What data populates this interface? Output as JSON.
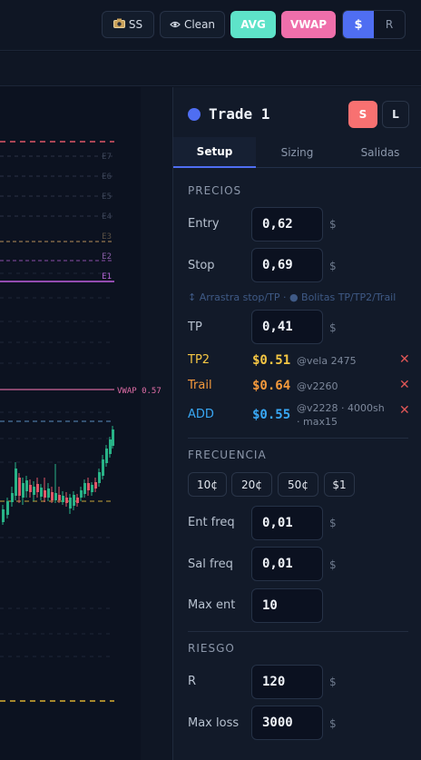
{
  "toolbar": {
    "ss_icon": "camera-icon",
    "ss_label": "SS",
    "clean_icon": "eye-icon",
    "clean_label": "Clean",
    "avg_label": "AVG",
    "vwap_label": "VWAP",
    "currency_on": "$",
    "currency_off": "R",
    "colors": {
      "avg": "#5ee3c9",
      "vwap": "#ef6fab",
      "accent": "#4f6ef2"
    }
  },
  "chart": {
    "entry_levels": [
      "E7",
      "E6",
      "E5",
      "E4",
      "E3",
      "E2",
      "E1"
    ],
    "vwap_label": "VWAP 0.57"
  },
  "panel": {
    "title": "Trade 1",
    "short_label": "S",
    "long_label": "L",
    "tabs": [
      "Setup",
      "Sizing",
      "Salidas"
    ],
    "precios": {
      "title": "PRECIOS",
      "entry_label": "Entry",
      "entry_value": "0,62",
      "entry_unit": "$",
      "stop_label": "Stop",
      "stop_value": "0,69",
      "stop_unit": "$",
      "hint": "↕ Arrastra stop/TP · ● Bolitas TP/TP2/Trail",
      "tp_label": "TP",
      "tp_value": "0,41",
      "tp_unit": "$"
    },
    "extra_rows": [
      {
        "label": "TP2",
        "value": "$0.51",
        "note": "@vela 2475",
        "color": "#f6c744"
      },
      {
        "label": "Trail",
        "value": "$0.64",
        "note": "@v2260",
        "color": "#f59a3c"
      },
      {
        "label": "ADD",
        "value": "$0.55",
        "note": "@v2228 · 4000sh · max15",
        "color": "#39a8f5"
      }
    ],
    "frecuencia": {
      "title": "FRECUENCIA",
      "chips": [
        "10¢",
        "20¢",
        "50¢",
        "$1"
      ],
      "ent_freq_label": "Ent freq",
      "ent_freq_value": "0,01",
      "ent_freq_unit": "$",
      "sal_freq_label": "Sal freq",
      "sal_freq_value": "0,01",
      "sal_freq_unit": "$",
      "max_ent_label": "Max ent",
      "max_ent_value": "10"
    },
    "riesgo": {
      "title": "RIESGO",
      "r_label": "R",
      "r_value": "120",
      "r_unit": "$",
      "max_loss_label": "Max loss",
      "max_loss_value": "3000",
      "max_loss_unit": "$"
    }
  }
}
